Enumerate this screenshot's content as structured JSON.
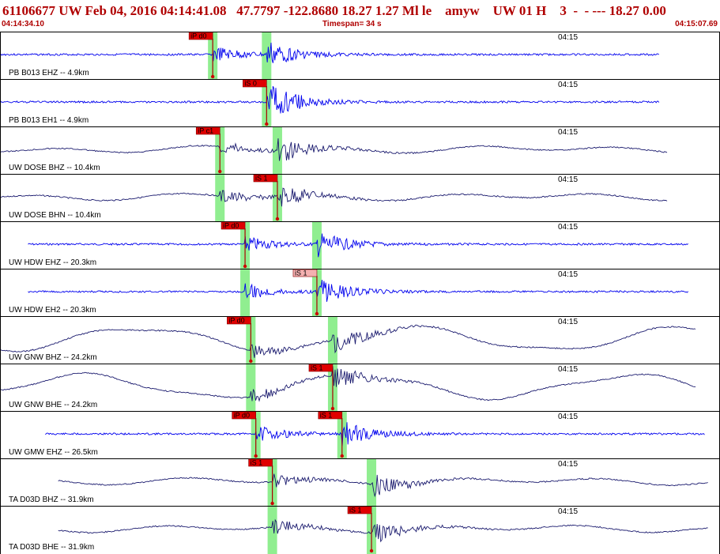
{
  "header": {
    "title": "61106677 UW Feb 04, 2016 04:14:41.08   47.7797 -122.8680 18.27 1.27 Ml le    amyw    UW 01 H    3  -  - --- 18.27 0.00",
    "start_time": "04:14:34.10",
    "timespan": "Timespan=  34 s",
    "end_time": "04:15:07.69"
  },
  "colors": {
    "title": "#b00000",
    "waveform_dark": "#1a1a6e",
    "waveform_blue": "#0000ee",
    "pick_flag": "#e00000",
    "pick_flag_light": "#f4b0b0",
    "pick_band": "#90ee90"
  },
  "traces": [
    {
      "station": "PB B013 EHZ -- 4.9km",
      "tick_label": "04:15",
      "style": "blue",
      "start": 0.0,
      "end": 0.917,
      "wave": "hf",
      "picks": [
        {
          "label": "iP d0",
          "time": 0.295,
          "style": "red"
        },
        {
          "label": "",
          "time": 0.37,
          "style": "none"
        }
      ]
    },
    {
      "station": "PB B013 EH1 -- 4.9km",
      "tick_label": "04:15",
      "style": "blue",
      "start": 0.0,
      "end": 0.917,
      "wave": "hf",
      "picks": [
        {
          "label": "iS 0",
          "time": 0.37,
          "style": "red"
        }
      ]
    },
    {
      "station": "UW DOSE BHZ -- 10.4km",
      "tick_label": "04:15",
      "style": "dark",
      "start": 0.0,
      "end": 0.928,
      "wave": "lf",
      "picks": [
        {
          "label": "iP c1",
          "time": 0.305,
          "style": "red"
        },
        {
          "label": "",
          "time": 0.385,
          "style": "none"
        }
      ]
    },
    {
      "station": "UW DOSE BHN -- 10.4km",
      "tick_label": "04:15",
      "style": "dark",
      "start": 0.0,
      "end": 0.928,
      "wave": "lf",
      "picks": [
        {
          "label": "",
          "time": 0.305,
          "style": "none"
        },
        {
          "label": "iS 1",
          "time": 0.385,
          "style": "red"
        }
      ]
    },
    {
      "station": "UW HDW EHZ -- 20.3km",
      "tick_label": "04:15",
      "style": "blue",
      "start": 0.038,
      "end": 0.957,
      "wave": "hf",
      "picks": [
        {
          "label": "iP d0",
          "time": 0.34,
          "style": "red"
        },
        {
          "label": "",
          "time": 0.44,
          "style": "none"
        }
      ]
    },
    {
      "station": "UW HDW EH2 -- 20.3km",
      "tick_label": "04:15",
      "style": "blue",
      "start": 0.038,
      "end": 0.957,
      "wave": "hf",
      "picks": [
        {
          "label": "",
          "time": 0.34,
          "style": "none"
        },
        {
          "label": "iS 1",
          "time": 0.44,
          "style": "light"
        }
      ]
    },
    {
      "station": "UW GNW BHZ -- 24.2km",
      "tick_label": "04:15",
      "style": "dark",
      "start": 0.0,
      "end": 0.968,
      "wave": "vlf",
      "picks": [
        {
          "label": "iP d0",
          "time": 0.348,
          "style": "red"
        },
        {
          "label": "",
          "time": 0.462,
          "style": "none"
        }
      ]
    },
    {
      "station": "UW GNW BHE -- 24.2km",
      "tick_label": "04:15",
      "style": "dark",
      "start": 0.0,
      "end": 0.968,
      "wave": "vlf",
      "picks": [
        {
          "label": "",
          "time": 0.348,
          "style": "none"
        },
        {
          "label": "iS 1",
          "time": 0.462,
          "style": "red"
        }
      ]
    },
    {
      "station": "UW GMW EHZ -- 26.5km",
      "tick_label": "04:15",
      "style": "blue",
      "start": 0.062,
      "end": 0.98,
      "wave": "hf",
      "picks": [
        {
          "label": "iP d0",
          "time": 0.355,
          "style": "red"
        },
        {
          "label": "iS 1",
          "time": 0.475,
          "style": "red"
        }
      ]
    },
    {
      "station": "TA D03D BHZ -- 31.9km",
      "tick_label": "04:15",
      "style": "dark",
      "start": 0.08,
      "end": 0.985,
      "wave": "lf",
      "picks": [
        {
          "label": "iS 1",
          "time": 0.378,
          "style": "red"
        },
        {
          "label": "",
          "time": 0.516,
          "style": "none"
        }
      ]
    },
    {
      "station": "TA D03D BHE -- 31.9km",
      "tick_label": "04:15",
      "style": "dark",
      "start": 0.08,
      "end": 0.985,
      "wave": "lf",
      "picks": [
        {
          "label": "",
          "time": 0.378,
          "style": "none"
        },
        {
          "label": "iS 1",
          "time": 0.516,
          "style": "red"
        }
      ]
    }
  ]
}
